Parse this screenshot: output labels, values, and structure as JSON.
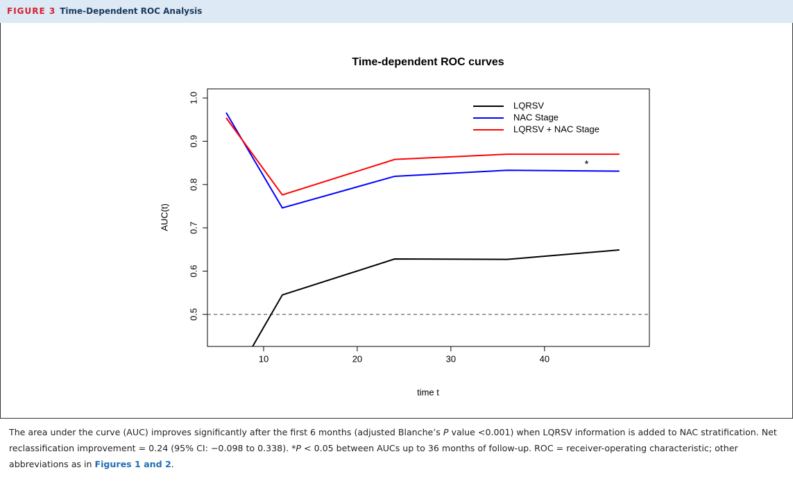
{
  "header": {
    "label": "FIGURE 3",
    "title": "Time-Dependent ROC Analysis"
  },
  "chart_data": {
    "type": "line",
    "title": "Time-dependent ROC curves",
    "x_label": "time t",
    "y_label": "AUC(t)",
    "x": [
      6,
      12,
      24,
      36,
      48
    ],
    "series": [
      {
        "name": "LQRSV",
        "color": "#000000",
        "values": [
          0.32,
          0.545,
          0.628,
          0.627,
          0.649
        ]
      },
      {
        "name": "NAC Stage",
        "color": "#0000ff",
        "values": [
          0.966,
          0.746,
          0.819,
          0.833,
          0.831
        ]
      },
      {
        "name": "LQRSV + NAC Stage",
        "color": "#ff0000",
        "values": [
          0.954,
          0.776,
          0.858,
          0.87,
          0.87
        ]
      }
    ],
    "xlim": [
      4,
      51.2
    ],
    "ylim": [
      0.426,
      1.021
    ],
    "xticks": [
      10,
      20,
      30,
      40
    ],
    "yticks": [
      0.5,
      0.6,
      0.7,
      0.8,
      0.9,
      {
        "value": 1,
        "label": "1.0"
      }
    ],
    "reference_line": 0.5,
    "annotation": {
      "text": "*",
      "x": 44.5,
      "y": 0.846
    },
    "legend": "top-right"
  },
  "caption": [
    "The area under the curve (AUC) improves significantly after the first 6 months (adjusted Blanche’s ",
    "P",
    " value <0.001) when LQRSV information is added to NAC stratification. Net reclassification improvement = 0.24 (95% CI: −0.098 to 0.338). *",
    "P",
    " < 0.05 between AUCs up to 36 months of follow-up. ROC = receiver-operating characteristic; other abbreviations as in ",
    "Figures 1 and 2",
    "."
  ]
}
